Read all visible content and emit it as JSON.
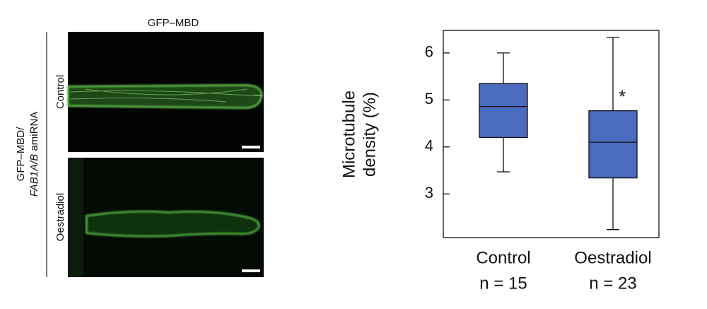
{
  "figure": {
    "panel_title": "GFP–MBD",
    "row_labels": [
      "Control",
      "Oestradiol"
    ],
    "side_label": [
      "GFP–MBD/",
      "FAB1A/B",
      "amiRNA"
    ]
  },
  "chart_data": {
    "type": "box",
    "ylabel": [
      "Microtubule",
      "density (%)"
    ],
    "categories": [
      "Control",
      "Oestradiol"
    ],
    "sample_labels": [
      "n = 15",
      "n = 23"
    ],
    "series": [
      {
        "color": "#4a6bbf",
        "min": [
          3.47,
          2.24
        ],
        "q1": [
          4.2,
          3.34
        ],
        "median": [
          4.86,
          4.1
        ],
        "q3": [
          5.35,
          4.77
        ],
        "max": [
          6.0,
          6.33
        ]
      }
    ],
    "annotations": [
      {
        "text": "*",
        "category": 1
      }
    ],
    "ylim": [
      2.07,
      6.48
    ],
    "yticks": [
      3,
      4,
      5,
      6
    ]
  }
}
